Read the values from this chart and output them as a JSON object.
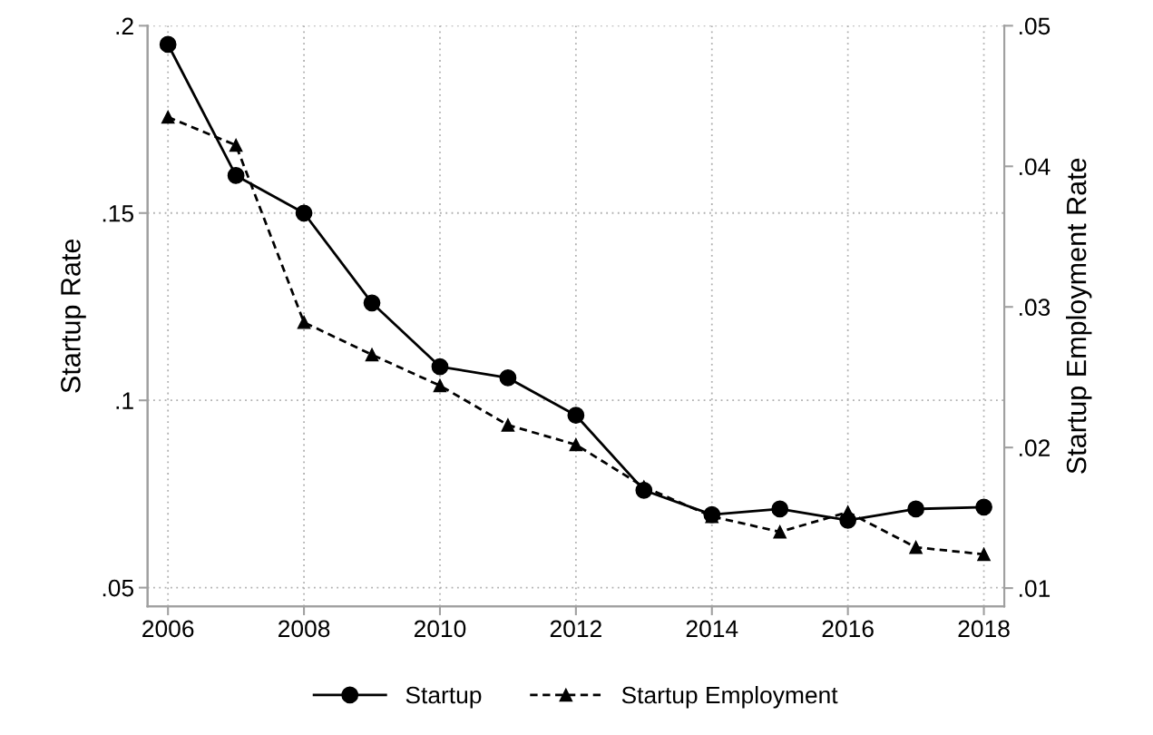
{
  "chart_data": {
    "type": "line",
    "ylabel": "Startup Rate",
    "y2label": "Startup Employment Rate",
    "x": [
      2006,
      2007,
      2008,
      2009,
      2010,
      2011,
      2012,
      2013,
      2014,
      2015,
      2016,
      2017,
      2018
    ],
    "series": [
      {
        "name": "Startup",
        "color": "#000000",
        "marker": "circle",
        "line_style": "solid",
        "values": [
          0.195,
          0.16,
          0.15,
          0.126,
          0.109,
          0.106,
          0.096,
          0.076,
          0.0695,
          0.071,
          0.068,
          0.071,
          0.0715
        ]
      },
      {
        "name": "Startup Employment",
        "color": "#000000",
        "marker": "triangle",
        "line_style": "dashed",
        "axis": "y2",
        "values": [
          0.0435,
          0.0415,
          0.0289,
          0.0266,
          0.0244,
          0.0216,
          0.0202,
          0.0172,
          0.0151,
          0.014,
          0.0154,
          0.0129,
          0.0124
        ]
      }
    ],
    "xlim": [
      2005.7,
      2018.3
    ],
    "xticks": [
      2006,
      2008,
      2010,
      2012,
      2014,
      2016,
      2018
    ],
    "ylim": [
      0.045,
      0.2
    ],
    "yticks": [
      {
        "value": 0.05,
        "label": ".05"
      },
      {
        "value": 0.1,
        "label": ".1"
      },
      {
        "value": 0.15,
        "label": ".15"
      },
      {
        "value": 0.2,
        "label": ".2"
      }
    ],
    "y2lim": [
      0.0087,
      0.05
    ],
    "y2ticks": [
      {
        "value": 0.01,
        "label": ".01"
      },
      {
        "value": 0.02,
        "label": ".02"
      },
      {
        "value": 0.03,
        "label": ".03"
      },
      {
        "value": 0.04,
        "label": ".04"
      },
      {
        "value": 0.05,
        "label": ".05"
      }
    ],
    "grid": true,
    "legend": "bottom"
  }
}
